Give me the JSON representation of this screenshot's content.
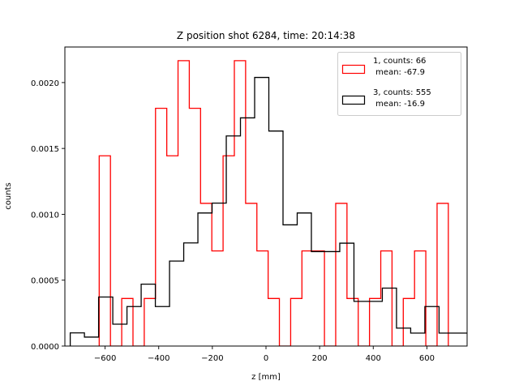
{
  "chart_data": {
    "type": "histogram-step",
    "title": "Z position shot 6284, time: 20:14:38",
    "xlabel": "z [mm]",
    "ylabel": "counts",
    "xlim": [
      -750,
      750
    ],
    "ylim": [
      0,
      0.00227
    ],
    "xticks": [
      -600,
      -400,
      -200,
      0,
      200,
      400,
      600
    ],
    "xtick_labels": [
      "−600",
      "−400",
      "−200",
      "0",
      "200",
      "400",
      "600"
    ],
    "yticks": [
      0,
      0.0005,
      0.001,
      0.0015,
      0.002
    ],
    "ytick_labels": [
      "0.0000",
      "0.0005",
      "0.0010",
      "0.0015",
      "0.0020"
    ],
    "grid": false,
    "legend_position": "top-right",
    "series": [
      {
        "name": "1, counts: 66\n mean: -67.9",
        "legend_line1": "1, counts: 66",
        "legend_line2": " mean: -67.9",
        "color": "#ff0000",
        "bin_start": -622,
        "bin_width": 42.0,
        "values": [
          0.001444,
          0,
          0.000361,
          0,
          0.000361,
          0.001805,
          0.001444,
          0.002166,
          0.001805,
          0.001083,
          0.000722,
          0.001444,
          0.002166,
          0.001083,
          0.000722,
          0.000361,
          0,
          0.000361,
          0.000722,
          0.000722,
          0,
          0.001083,
          0.000361,
          0,
          0.000361,
          0.000722,
          0,
          0.000361,
          0.000722,
          0,
          0.001083
        ]
      },
      {
        "name": "3, counts: 555\n mean: -16.9",
        "legend_line1": "3, counts: 555",
        "legend_line2": " mean: -16.9",
        "color": "#000000",
        "bin_start": -730,
        "bin_width": 52.9,
        "values": [
          0.0001,
          6.8e-05,
          0.000372,
          0.000166,
          0.0003,
          0.00047,
          0.0003,
          0.000645,
          0.000783,
          0.00101,
          0.001085,
          0.001595,
          0.001732,
          0.002039,
          0.001632,
          0.00092,
          0.00101,
          0.000717,
          0.000717,
          0.000781,
          0.000339,
          0.000339,
          0.00044,
          0.000136,
          9.86e-05,
          0.0003,
          9.86e-05,
          9.86e-05
        ]
      }
    ]
  }
}
